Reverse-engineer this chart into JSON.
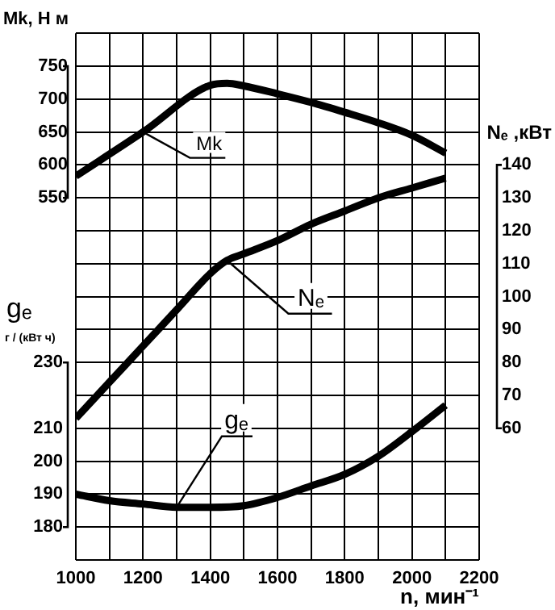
{
  "chart_data": {
    "type": "line",
    "xlabel": "n, мин⁻¹",
    "ylabel": "Mk, Н м",
    "y2label": "Nₑ ,кВт",
    "y3label": "gₑ\nг / (кВт ч)",
    "xlim": [
      1000,
      2200
    ],
    "xticks": [
      1000,
      {
        "value": 1100,
        "label": null
      },
      1200,
      {
        "value": 1300,
        "label": null
      },
      1400,
      {
        "value": 1500,
        "label": null
      },
      1600,
      {
        "value": 1700,
        "label": null
      },
      1800,
      {
        "value": 1900,
        "label": null
      },
      2000,
      {
        "value": 2100,
        "label": null
      },
      2200
    ],
    "ylim": [
      0,
      800
    ],
    "yticks": [
      {
        "value": 0,
        "label": null
      },
      {
        "value": 50,
        "label": null
      },
      {
        "value": 100,
        "label": null
      },
      {
        "value": 150,
        "label": null
      },
      {
        "value": 200,
        "label": null
      },
      {
        "value": 250,
        "label": null
      },
      {
        "value": 300,
        "label": null
      },
      {
        "value": 350,
        "label": null
      },
      {
        "value": 400,
        "label": null
      },
      {
        "value": 450,
        "label": null
      },
      {
        "value": 500,
        "label": null
      },
      550,
      600,
      650,
      700,
      750,
      {
        "value": 800,
        "label": null
      }
    ],
    "y2lim": [
      20,
      180
    ],
    "y2ticks": [
      60,
      70,
      80,
      90,
      100,
      110,
      120,
      130,
      140
    ],
    "y3lim": [
      170,
      330
    ],
    "y3ticks": [
      180,
      190,
      200,
      210,
      230
    ],
    "grid": true,
    "marker": "none",
    "line_style": "solid",
    "series": [
      {
        "name": "Mk",
        "color": "#000000",
        "x": [
          1000,
          1200,
          1400,
          1450,
          1500,
          1600,
          1700,
          1800,
          1900,
          2000,
          2100
        ],
        "values": [
          583,
          650,
          721,
          724,
          720,
          708,
          695,
          680,
          664,
          645,
          618
        ]
      },
      {
        "name": "Nₑ",
        "axis": "y2",
        "color": "#000000",
        "x": [
          1000,
          1100,
          1200,
          1300,
          1400,
          1450,
          1500,
          1600,
          1700,
          1800,
          1900,
          2000,
          2100
        ],
        "values": [
          63,
          74,
          85,
          96,
          107,
          111,
          113,
          117,
          122,
          126,
          130,
          133,
          136
        ]
      },
      {
        "name": "gₑ",
        "axis": "y3",
        "color": "#000000",
        "x": [
          1000,
          1100,
          1200,
          1300,
          1400,
          1500,
          1600,
          1700,
          1800,
          1900,
          2000,
          2100
        ],
        "values": [
          190,
          188,
          187,
          186,
          186,
          186.5,
          189,
          192.5,
          196,
          201.5,
          209,
          217
        ]
      }
    ]
  }
}
